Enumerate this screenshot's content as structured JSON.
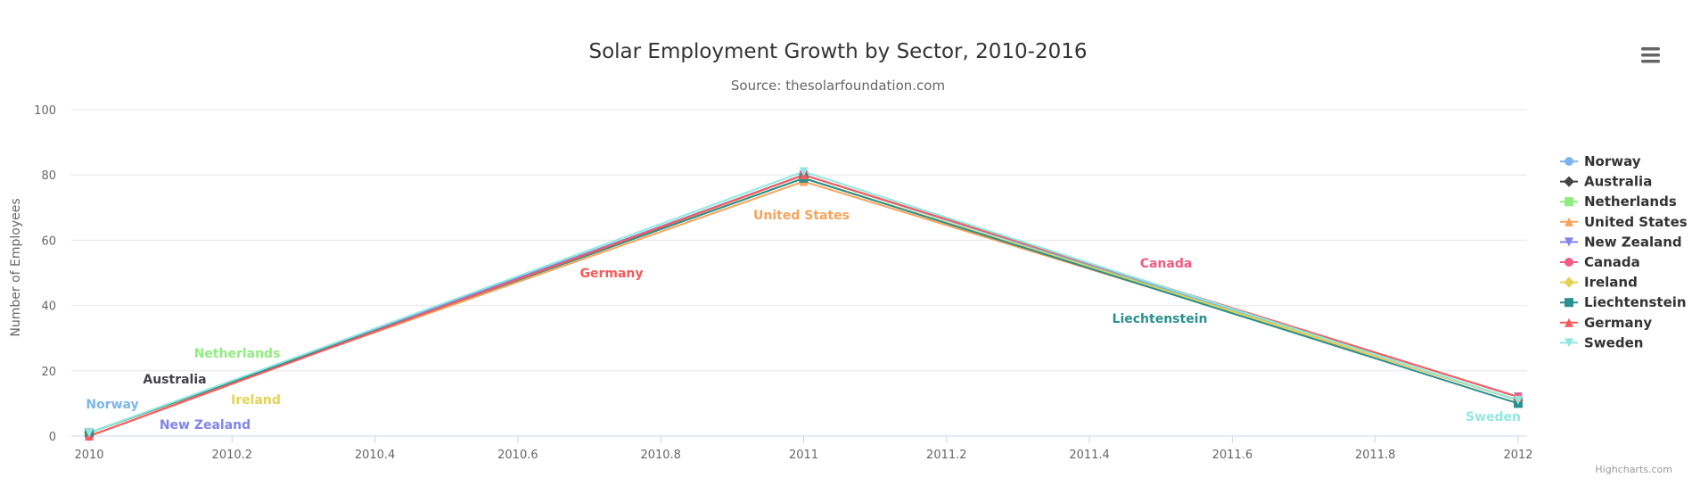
{
  "chart_data": {
    "type": "line",
    "title": "Solar Employment Growth by Sector, 2010-2016",
    "subtitle": "Source: thesolarfoundation.com",
    "ylabel": "Number of Employees",
    "xlabel": "",
    "xlim": [
      2010,
      2012
    ],
    "ylim": [
      0,
      100
    ],
    "x_ticks": [
      "2010",
      "2010.2",
      "2010.4",
      "2010.6",
      "2010.8",
      "2011",
      "2011.2",
      "2011.4",
      "2011.6",
      "2011.8",
      "2012"
    ],
    "y_ticks": [
      "0",
      "20",
      "40",
      "60",
      "80",
      "100"
    ],
    "grid": true,
    "legend_position": "right",
    "x": [
      2010,
      2011,
      2012
    ],
    "series": [
      {
        "name": "Norway",
        "color": "#7cb5ec",
        "marker": "circle",
        "values": [
          1,
          80,
          11
        ]
      },
      {
        "name": "Australia",
        "color": "#434348",
        "marker": "diamond",
        "values": [
          1,
          79,
          11
        ]
      },
      {
        "name": "Netherlands",
        "color": "#90ed7d",
        "marker": "square",
        "values": [
          1,
          79,
          11
        ]
      },
      {
        "name": "United States",
        "color": "#f7a35c",
        "marker": "triangle",
        "values": [
          1,
          78,
          11
        ]
      },
      {
        "name": "New Zealand",
        "color": "#8085e9",
        "marker": "triangle-down",
        "values": [
          1,
          80,
          12
        ]
      },
      {
        "name": "Canada",
        "color": "#f15c80",
        "marker": "circle",
        "values": [
          0,
          80,
          12
        ]
      },
      {
        "name": "Ireland",
        "color": "#e4d354",
        "marker": "diamond",
        "values": [
          1,
          79,
          11
        ]
      },
      {
        "name": "Liechtenstein",
        "color": "#2b908f",
        "marker": "square",
        "values": [
          1,
          79,
          10
        ]
      },
      {
        "name": "Germany",
        "color": "#f45b5b",
        "marker": "triangle",
        "values": [
          0,
          80,
          12
        ]
      },
      {
        "name": "Sweden",
        "color": "#91e8e1",
        "marker": "triangle-down",
        "values": [
          1,
          81,
          11
        ]
      }
    ],
    "annotations": [
      {
        "text": "Norway",
        "series": "Norway"
      },
      {
        "text": "Australia",
        "series": "Australia"
      },
      {
        "text": "Netherlands",
        "series": "Netherlands"
      },
      {
        "text": "New Zealand",
        "series": "New Zealand"
      },
      {
        "text": "Ireland",
        "series": "Ireland"
      },
      {
        "text": "Germany",
        "series": "Germany"
      },
      {
        "text": "United States",
        "series": "United States"
      },
      {
        "text": "Canada",
        "series": "Canada"
      },
      {
        "text": "Liechtenstein",
        "series": "Liechtenstein"
      },
      {
        "text": "Sweden",
        "series": "Sweden"
      }
    ]
  },
  "credits": "Highcharts.com",
  "menu": {
    "icon": "hamburger-menu-icon"
  }
}
